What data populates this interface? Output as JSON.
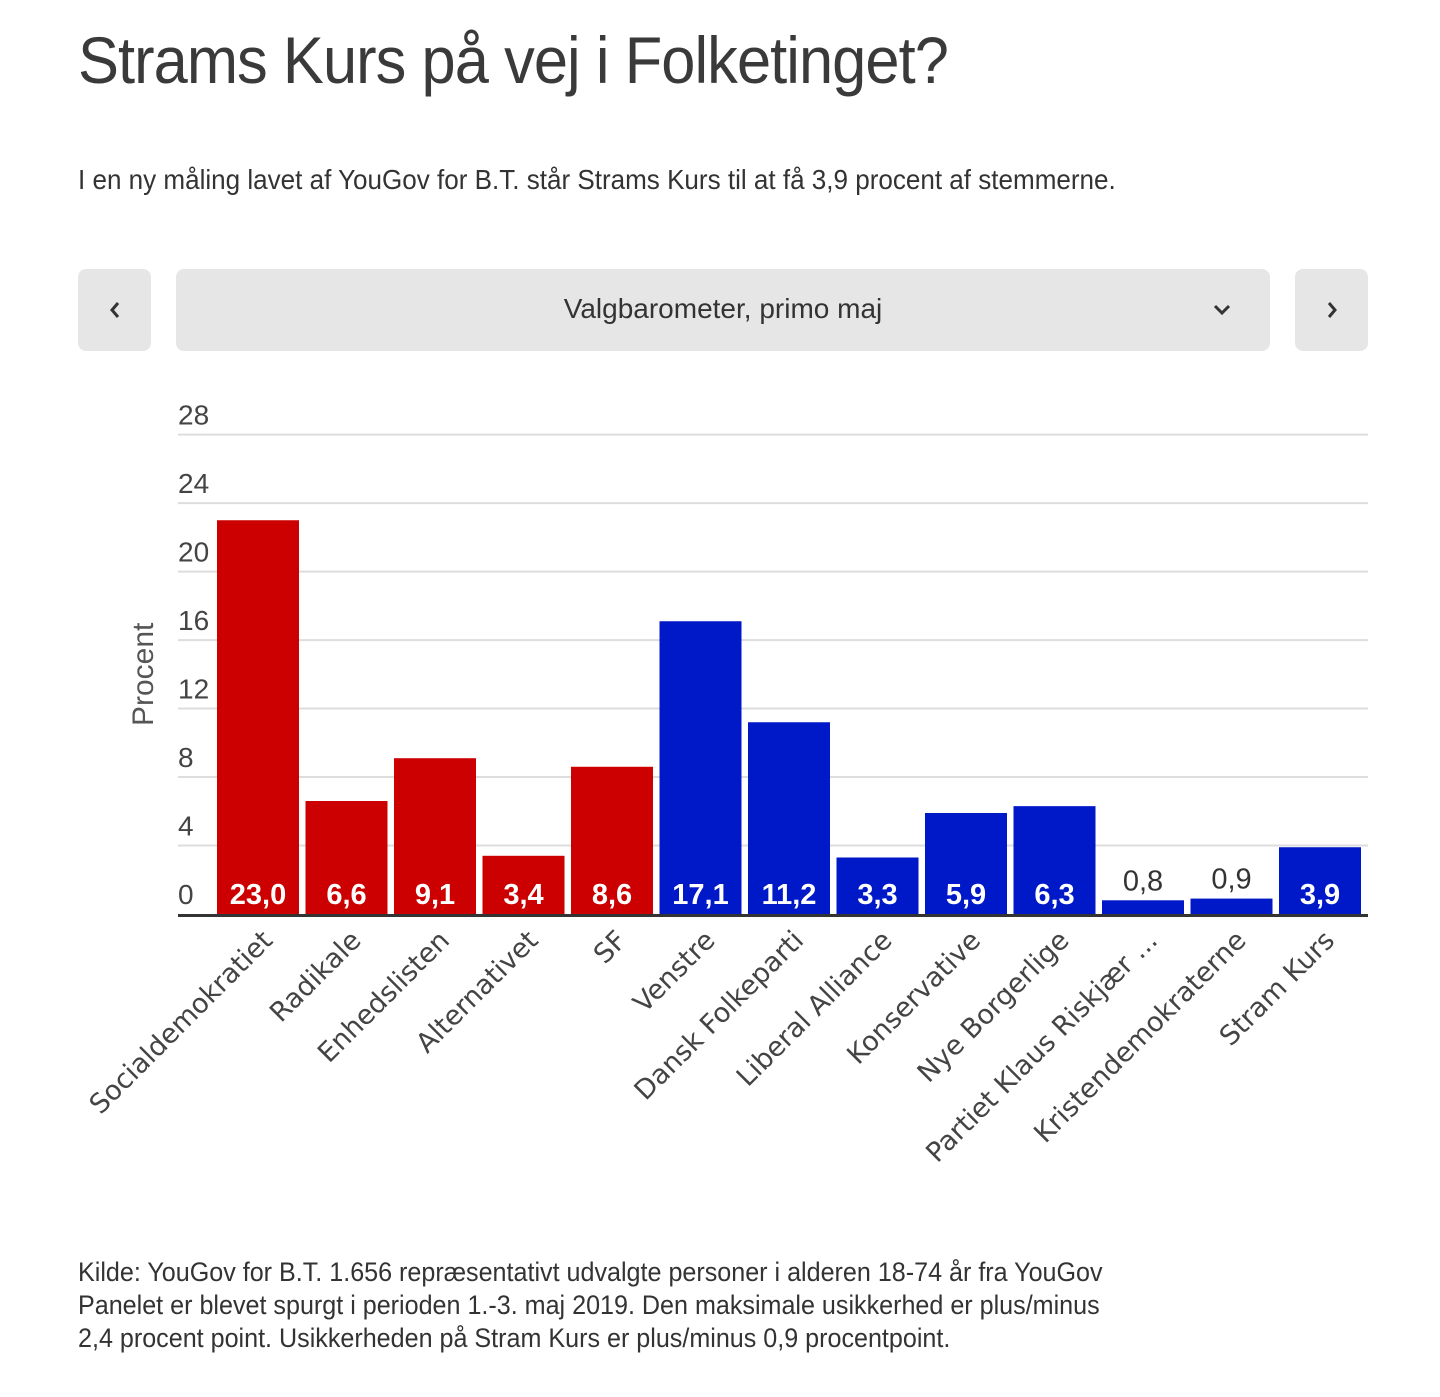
{
  "header": {
    "title": "Strams Kurs på vej i Folketinget?",
    "subtitle": "I en ny måling lavet af YouGov for B.T. står Strams Kurs til at få 3,9 procent af stemmerne."
  },
  "selector": {
    "prev_icon": "chevron-left-icon",
    "next_icon": "chevron-right-icon",
    "dropdown_icon": "chevron-down-icon",
    "selected": "Valgbarometer, primo maj"
  },
  "colors": {
    "red_bloc": "#cc0000",
    "blue_bloc": "#0019c8",
    "gridline": "#dddddd",
    "axis": "#333333"
  },
  "chart_data": {
    "type": "bar",
    "title": "",
    "xlabel": "",
    "ylabel": "Procent",
    "ylim": [
      0,
      28
    ],
    "yticks": [
      0,
      4,
      8,
      12,
      16,
      20,
      24,
      28
    ],
    "grid": true,
    "categories": [
      "Socialdemokratiet",
      "Radikale",
      "Enhedslisten",
      "Alternativet",
      "SF",
      "Venstre",
      "Dansk Folkeparti",
      "Liberal Alliance",
      "Konservative",
      "Nye Borgerlige",
      "Partiet Klaus Riskjær ...",
      "Kristendemokraterne",
      "Stram Kurs"
    ],
    "values": [
      23.0,
      6.6,
      9.1,
      3.4,
      8.6,
      17.1,
      11.2,
      3.3,
      5.9,
      6.3,
      0.8,
      0.9,
      3.9
    ],
    "value_labels": [
      "23,0",
      "6,6",
      "9,1",
      "3,4",
      "8,6",
      "17,1",
      "11,2",
      "3,3",
      "5,9",
      "6,3",
      "0,8",
      "0,9",
      "3,9"
    ],
    "bloc": [
      "red",
      "red",
      "red",
      "red",
      "red",
      "blue",
      "blue",
      "blue",
      "blue",
      "blue",
      "blue",
      "blue",
      "blue"
    ]
  },
  "footer": {
    "source_lines": [
      "Kilde: YouGov for B.T. 1.656 repræsentativt udvalgte personer i alderen 18-74 år fra YouGov",
      "Panelet er blevet spurgt i perioden 1.-3. maj 2019. Den maksimale usikkerhed er plus/minus",
      "2,4 procent point. Usikkerheden på Stram Kurs er plus/minus 0,9 procentpoint."
    ]
  }
}
